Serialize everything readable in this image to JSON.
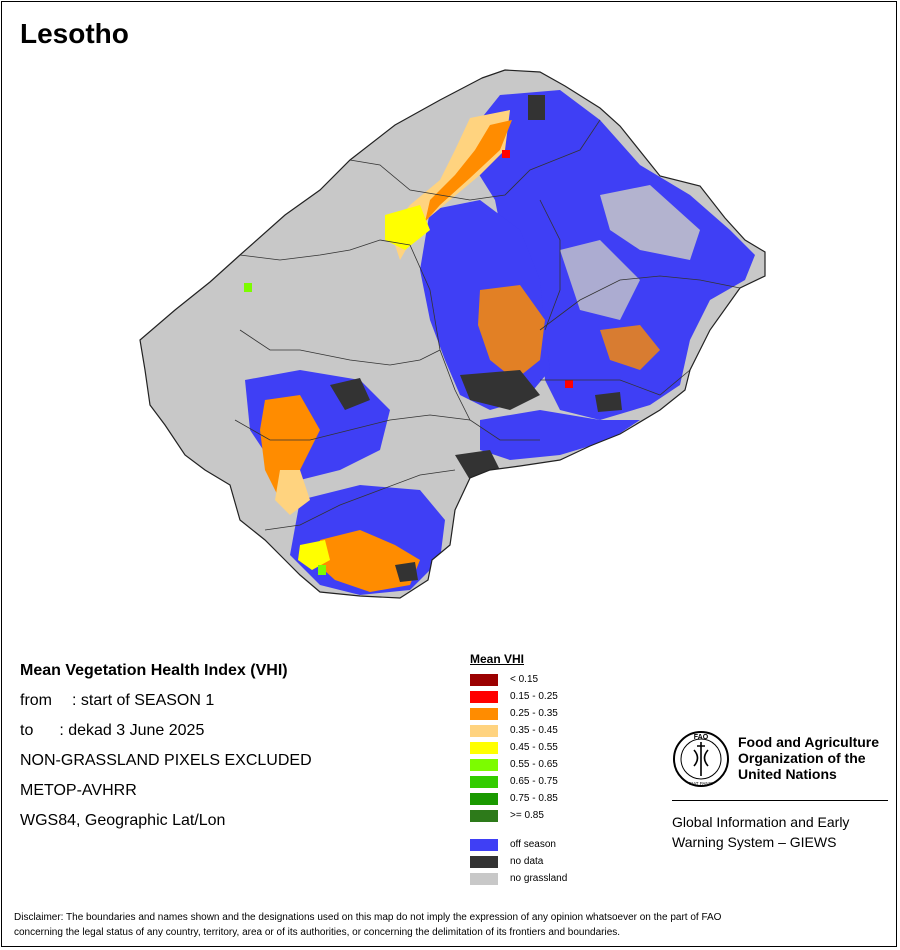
{
  "map": {
    "title": "Lesotho"
  },
  "info": {
    "heading": "Mean Vegetation Health Index (VHI)",
    "from_label": "from",
    "from_value": ": start of SEASON 1",
    "to_label": "to",
    "to_value": ": dekad 3 June 2025",
    "line_exclusion": "NON-GRASSLAND PIXELS EXCLUDED",
    "line_sensor": "METOP-AVHRR",
    "line_projection": "WGS84, Geographic Lat/Lon"
  },
  "legend": {
    "title": "Mean VHI",
    "classes": [
      {
        "label": "< 0.15",
        "color": "#9b0000"
      },
      {
        "label": "0.15 - 0.25",
        "color": "#ff0000"
      },
      {
        "label": "0.25 - 0.35",
        "color": "#ff8c00"
      },
      {
        "label": "0.35 - 0.45",
        "color": "#ffd37f"
      },
      {
        "label": "0.45 - 0.55",
        "color": "#ffff00"
      },
      {
        "label": "0.55 - 0.65",
        "color": "#7cfc00"
      },
      {
        "label": "0.65 - 0.75",
        "color": "#33cc00"
      },
      {
        "label": "0.75 - 0.85",
        "color": "#1a9900"
      },
      {
        "label": ">= 0.85",
        "color": "#2d7a1a"
      }
    ],
    "other": [
      {
        "label": "off season",
        "color": "#3f3ff5"
      },
      {
        "label": "no data",
        "color": "#333333"
      },
      {
        "label": "no grassland",
        "color": "#c8c8c8"
      }
    ]
  },
  "fao": {
    "org_line1": "Food and Agriculture",
    "org_line2": "Organization of the",
    "org_line3": "United Nations",
    "logo_text_top": "FAO",
    "logo_text_bottom": "FIAT PANIS",
    "system_line1": "Global Information and Early",
    "system_line2": "Warning System – GIEWS"
  },
  "disclaimer": {
    "line1": "Disclaimer: The boundaries and names shown and the designations used on this map do not imply the expression of any opinion whatsoever on the part of FAO",
    "line2": "concerning the legal status of any country, territory, area or of its authorities, or concerning the delimitation of its frontiers and boundaries."
  }
}
